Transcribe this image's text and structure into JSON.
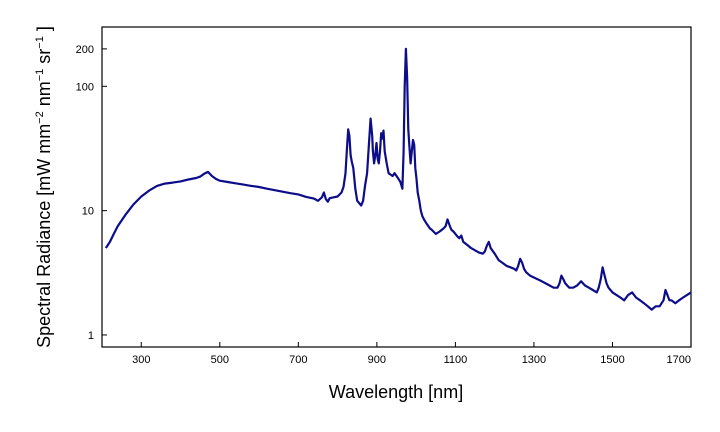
{
  "chart_data": {
    "type": "line",
    "title": "",
    "xlabel": "Wavelength [nm]",
    "ylabel_parts": {
      "lead": "Spectral Radiance [mW mm",
      "exp1": "−2",
      "mid": " nm",
      "exp2": "−1",
      "tail": " sr",
      "exp3": "−1",
      "end": " ]"
    },
    "x_scale": "linear",
    "y_scale": "log",
    "xlim": [
      200,
      1700
    ],
    "ylim": [
      0.8,
      300
    ],
    "x_ticks": [
      300,
      500,
      700,
      900,
      1100,
      1300,
      1500,
      1700
    ],
    "y_ticks": [
      1,
      10,
      100,
      200
    ],
    "grid": false,
    "legend": "none",
    "line_color": "#0d0d8a",
    "series": [
      {
        "x": [
          210,
          215,
          220,
          230,
          240,
          260,
          280,
          300,
          320,
          340,
          360,
          380,
          400,
          420,
          440,
          450,
          460,
          470,
          480,
          490,
          500,
          520,
          540,
          560,
          580,
          600,
          620,
          640,
          660,
          680,
          700,
          720,
          740,
          750,
          760,
          765,
          770,
          775,
          780,
          790,
          800,
          810,
          815,
          820,
          824,
          827,
          830,
          833,
          836,
          840,
          845,
          850,
          855,
          860,
          865,
          870,
          875,
          880,
          884,
          888,
          890,
          893,
          896,
          899,
          902,
          905,
          908,
          911,
          914,
          917,
          920,
          925,
          930,
          935,
          940,
          945,
          950,
          955,
          960,
          965,
          968,
          971,
          974,
          977,
          980,
          983,
          986,
          989,
          992,
          995,
          998,
          1001,
          1004,
          1008,
          1012,
          1016,
          1020,
          1025,
          1030,
          1035,
          1040,
          1050,
          1060,
          1070,
          1075,
          1080,
          1083,
          1086,
          1090,
          1095,
          1100,
          1105,
          1110,
          1115,
          1120,
          1130,
          1140,
          1150,
          1160,
          1170,
          1175,
          1180,
          1185,
          1190,
          1200,
          1210,
          1220,
          1230,
          1240,
          1250,
          1255,
          1260,
          1265,
          1270,
          1275,
          1280,
          1290,
          1300,
          1310,
          1320,
          1330,
          1340,
          1350,
          1360,
          1365,
          1370,
          1375,
          1380,
          1390,
          1400,
          1410,
          1420,
          1425,
          1430,
          1440,
          1450,
          1460,
          1465,
          1470,
          1475,
          1480,
          1485,
          1490,
          1500,
          1510,
          1520,
          1530,
          1540,
          1550,
          1560,
          1570,
          1580,
          1590,
          1600,
          1610,
          1620,
          1630,
          1635,
          1640,
          1645,
          1650,
          1660,
          1670,
          1680,
          1690,
          1700
        ],
        "y": [
          5.0,
          5.3,
          5.6,
          6.5,
          7.5,
          9.3,
          11.2,
          13.0,
          14.5,
          15.8,
          16.5,
          16.8,
          17.2,
          17.8,
          18.3,
          18.8,
          19.8,
          20.5,
          19.0,
          18.0,
          17.4,
          17.0,
          16.6,
          16.2,
          15.8,
          15.5,
          15.0,
          14.6,
          14.2,
          13.8,
          13.5,
          12.9,
          12.5,
          12.0,
          12.8,
          14.0,
          12.4,
          11.8,
          12.6,
          12.8,
          13.0,
          14.0,
          15.5,
          20.0,
          32.0,
          45.0,
          40.0,
          28.0,
          25.0,
          22.0,
          15.0,
          12.0,
          11.5,
          11.0,
          12.0,
          16.0,
          20.0,
          35.0,
          55.0,
          40.0,
          30.0,
          24.0,
          28.0,
          35.0,
          26.0,
          24.0,
          30.0,
          42.0,
          38.0,
          44.0,
          30.0,
          24.0,
          20.0,
          19.5,
          19.0,
          20.0,
          19.0,
          18.0,
          17.0,
          15.0,
          30.0,
          100.0,
          200.0,
          120.0,
          45.0,
          32.0,
          24.0,
          30.0,
          37.0,
          34.0,
          22.0,
          18.0,
          14.0,
          12.0,
          10.0,
          9.0,
          8.5,
          8.0,
          7.6,
          7.2,
          7.0,
          6.5,
          6.8,
          7.2,
          7.5,
          8.5,
          8.0,
          7.5,
          7.0,
          6.8,
          6.5,
          6.2,
          6.0,
          6.3,
          5.6,
          5.3,
          5.0,
          4.8,
          4.6,
          4.5,
          4.7,
          5.2,
          5.6,
          5.0,
          4.5,
          4.0,
          3.8,
          3.6,
          3.5,
          3.4,
          3.3,
          3.6,
          4.1,
          3.8,
          3.4,
          3.2,
          3.0,
          2.9,
          2.8,
          2.7,
          2.6,
          2.5,
          2.4,
          2.4,
          2.6,
          3.0,
          2.8,
          2.6,
          2.4,
          2.4,
          2.5,
          2.7,
          2.6,
          2.5,
          2.4,
          2.3,
          2.2,
          2.4,
          2.8,
          3.5,
          3.0,
          2.6,
          2.4,
          2.2,
          2.1,
          2.0,
          1.9,
          2.1,
          2.2,
          2.0,
          1.9,
          1.8,
          1.7,
          1.6,
          1.7,
          1.7,
          1.9,
          2.3,
          2.1,
          1.9,
          1.9,
          1.8,
          1.9,
          2.0,
          2.1,
          2.2
        ]
      }
    ]
  }
}
